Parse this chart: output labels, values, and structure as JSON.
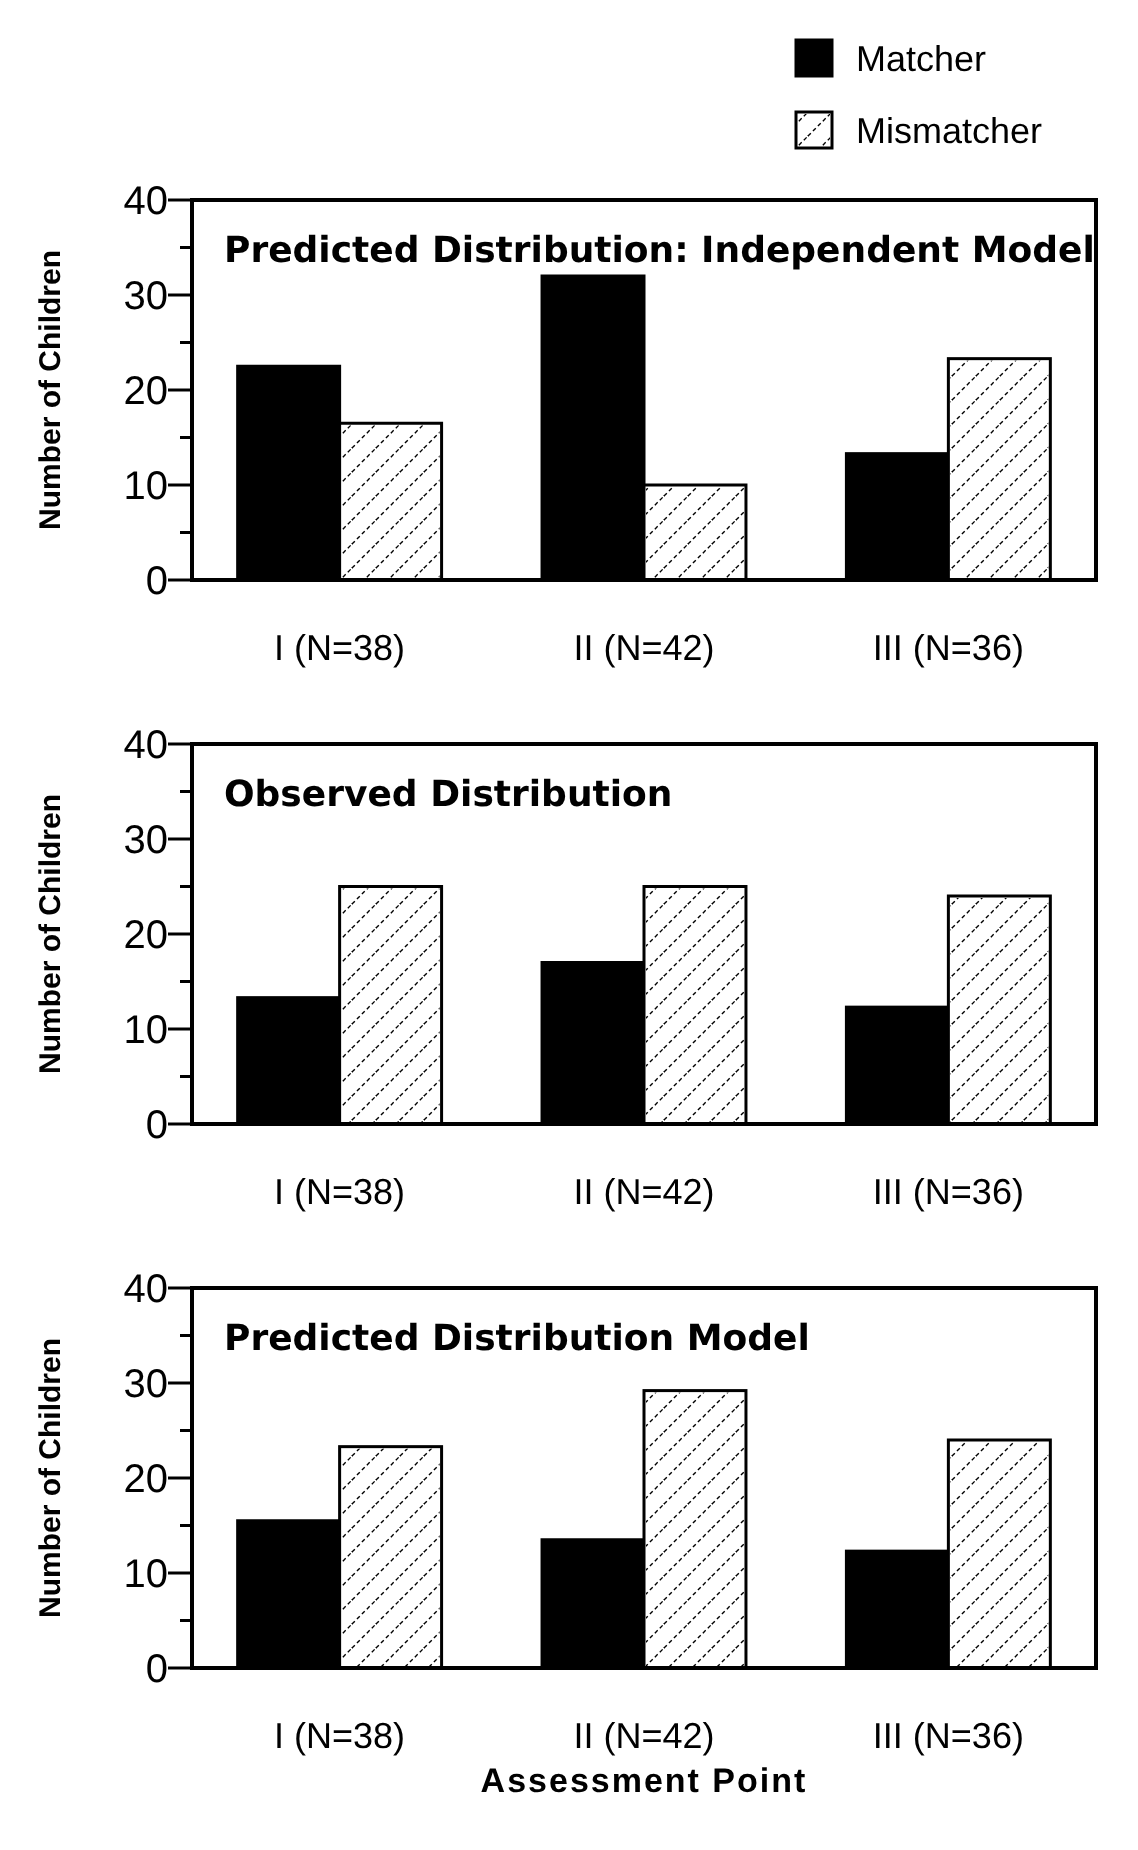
{
  "chart_data": [
    {
      "type": "bar",
      "title": "Predicted Distribution: Independent Model",
      "ylabel": "Number of Children",
      "categories": [
        "I (N=38)",
        "II (N=42)",
        "III (N=36)"
      ],
      "series": [
        {
          "name": "Matcher",
          "color": "#000000",
          "values": [
            22.5,
            32,
            13.3
          ]
        },
        {
          "name": "Mismatcher",
          "color": "#ffffff",
          "values": [
            16.5,
            10,
            23.3
          ]
        }
      ],
      "ylim": [
        0,
        40
      ],
      "yticks": [
        0,
        {
          "value": 5,
          "label": null
        },
        10,
        {
          "value": 15,
          "label": null
        },
        20,
        {
          "value": 25,
          "label": null
        },
        30,
        {
          "value": 35,
          "label": null
        },
        40
      ],
      "legend": "top right",
      "grid": false
    },
    {
      "type": "bar",
      "title": "Observed Distribution",
      "ylabel": "Number of Children",
      "categories": [
        "I (N=38)",
        "II (N=42)",
        "III (N=36)"
      ],
      "series": [
        {
          "color": "#000000",
          "values": [
            13.3,
            17,
            12.3
          ]
        },
        {
          "color": "#ffffff",
          "values": [
            25,
            25,
            24
          ]
        }
      ],
      "ylim": [
        0,
        40
      ],
      "yticks": [
        0,
        {
          "value": 5,
          "label": null
        },
        10,
        {
          "value": 15,
          "label": null
        },
        20,
        {
          "value": 25,
          "label": null
        },
        30,
        {
          "value": 35,
          "label": null
        },
        40
      ],
      "grid": false
    },
    {
      "type": "bar",
      "title": "Predicted Distribution Model",
      "ylabel": "Number of Children",
      "xlabel": "Assessment Point",
      "categories": [
        "I (N=38)",
        "II (N=42)",
        "III (N=36)"
      ],
      "series": [
        {
          "color": "#000000",
          "values": [
            15.5,
            13.5,
            12.3
          ]
        },
        {
          "color": "#ffffff",
          "values": [
            23.3,
            29.2,
            24
          ]
        }
      ],
      "ylim": [
        0,
        40
      ],
      "yticks": [
        0,
        {
          "value": 5,
          "label": null
        },
        10,
        {
          "value": 15,
          "label": null
        },
        20,
        {
          "value": 25,
          "label": null
        },
        30,
        {
          "value": 35,
          "label": null
        },
        40
      ],
      "grid": false
    }
  ]
}
